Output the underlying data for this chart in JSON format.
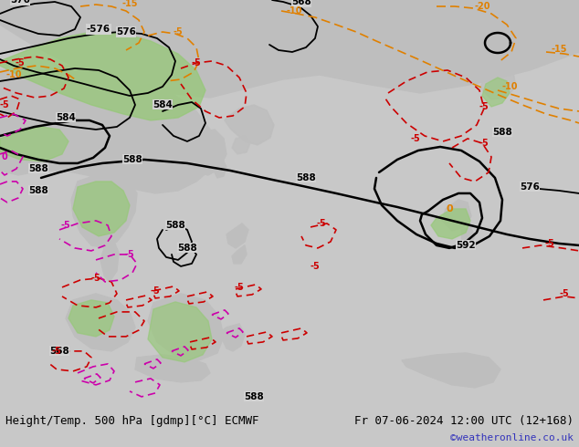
{
  "title_left": "Height/Temp. 500 hPa [gdmp][°C] ECMWF",
  "title_right": "Fr 07-06-2024 12:00 UTC (12+168)",
  "watermark": "©weatheronline.co.uk",
  "bg_color": "#c8c8c8",
  "ocean_color": "#d2d2d2",
  "land_color": "#bebebe",
  "green_color": "#96c878",
  "bottom_bar_color": "#d8d8d8",
  "title_color": "#000000",
  "watermark_color": "#3333bb",
  "black_line_color": "#000000",
  "orange_color": "#e08000",
  "red_color": "#cc0000",
  "magenta_color": "#cc00aa",
  "figsize": [
    6.34,
    4.9
  ],
  "dpi": 100
}
